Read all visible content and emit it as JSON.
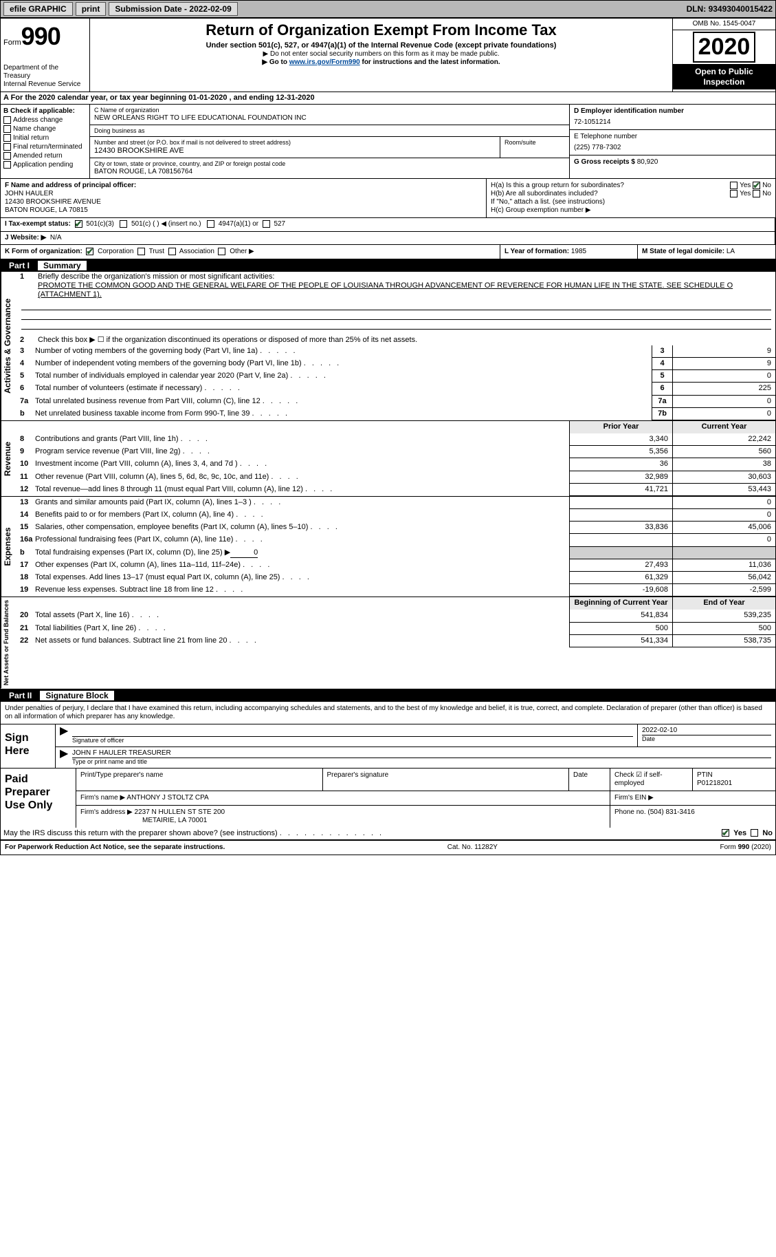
{
  "topbar": {
    "efile": "efile GRAPHIC",
    "print": "print",
    "subdate_label": "Submission Date - ",
    "subdate": "2022-02-09",
    "dln_label": "DLN: ",
    "dln": "93493040015422"
  },
  "header": {
    "form_word": "Form",
    "form_num": "990",
    "dept": "Department of the Treasury",
    "irs": "Internal Revenue Service",
    "title": "Return of Organization Exempt From Income Tax",
    "sub": "Under section 501(c), 527, or 4947(a)(1) of the Internal Revenue Code (except private foundations)",
    "note1": "▶ Do not enter social security numbers on this form as it may be made public.",
    "note2_pre": "▶ Go to ",
    "note2_link": "www.irs.gov/Form990",
    "note2_post": " for instructions and the latest information.",
    "omb": "OMB No. 1545-0047",
    "year": "2020",
    "open": "Open to Public Inspection"
  },
  "period": "A For the 2020 calendar year, or tax year beginning 01-01-2020   , and ending 12-31-2020",
  "B": {
    "label": "B Check if applicable:",
    "addr": "Address change",
    "name": "Name change",
    "init": "Initial return",
    "term": "Final return/terminated",
    "amend": "Amended return",
    "app": "Application pending"
  },
  "C": {
    "name_lbl": "C Name of organization",
    "name": "NEW ORLEANS RIGHT TO LIFE EDUCATIONAL FOUNDATION INC",
    "dba_lbl": "Doing business as",
    "dba": "",
    "addr_lbl": "Number and street (or P.O. box if mail is not delivered to street address)",
    "room_lbl": "Room/suite",
    "addr": "12430 BROOKSHIRE AVE",
    "city_lbl": "City or town, state or province, country, and ZIP or foreign postal code",
    "city": "BATON ROUGE, LA   708156764"
  },
  "D": {
    "lbl": "D Employer identification number",
    "val": "72-1051214"
  },
  "E": {
    "lbl": "E Telephone number",
    "val": "(225) 778-7302"
  },
  "G": {
    "lbl": "G Gross receipts $ ",
    "val": "80,920"
  },
  "F": {
    "lbl": "F Name and address of principal officer:",
    "name": "JOHN HAULER",
    "addr1": "12430 BROOKSHIRE AVENUE",
    "addr2": "BATON ROUGE, LA   70815"
  },
  "H": {
    "a": "H(a)  Is this a group return for subordinates?",
    "b": "H(b)  Are all subordinates included?",
    "bnote": "If \"No,\" attach a list. (see instructions)",
    "c": "H(c)  Group exemption number ▶",
    "yes": "Yes",
    "no": "No"
  },
  "I": {
    "lbl": "I   Tax-exempt status:",
    "opt1": "501(c)(3)",
    "opt2": "501(c) (  ) ◀ (insert no.)",
    "opt3": "4947(a)(1) or",
    "opt4": "527"
  },
  "J": {
    "lbl": "J   Website: ▶",
    "val": "N/A"
  },
  "K": {
    "lbl": "K Form of organization:",
    "corp": "Corporation",
    "trust": "Trust",
    "assoc": "Association",
    "other": "Other ▶"
  },
  "L": {
    "lbl": "L Year of formation: ",
    "val": "1985"
  },
  "M": {
    "lbl": "M State of legal domicile: ",
    "val": "LA"
  },
  "part1": {
    "no": "Part I",
    "title": "Summary"
  },
  "vtabs": {
    "ag": "Activities & Governance",
    "rev": "Revenue",
    "exp": "Expenses",
    "na": "Net Assets or Fund Balances"
  },
  "s1": {
    "n": "1",
    "txt": "Briefly describe the organization's mission or most significant activities:",
    "mission": "PROMOTE THE COMMON GOOD AND THE GENERAL WELFARE OF THE PEOPLE OF LOUISIANA THROUGH ADVANCEMENT OF REVERENCE FOR HUMAN LIFE IN THE STATE. SEE SCHEDULE O (ATTACHMENT 1)."
  },
  "s2": {
    "n": "2",
    "txt": "Check this box ▶ ☐  if the organization discontinued its operations or disposed of more than 25% of its net assets."
  },
  "lines_ag": [
    {
      "n": "3",
      "txt": "Number of voting members of the governing body (Part VI, line 1a)",
      "box": "3",
      "val": "9"
    },
    {
      "n": "4",
      "txt": "Number of independent voting members of the governing body (Part VI, line 1b)",
      "box": "4",
      "val": "9"
    },
    {
      "n": "5",
      "txt": "Total number of individuals employed in calendar year 2020 (Part V, line 2a)",
      "box": "5",
      "val": "0"
    },
    {
      "n": "6",
      "txt": "Total number of volunteers (estimate if necessary)",
      "box": "6",
      "val": "225"
    },
    {
      "n": "7a",
      "txt": "Total unrelated business revenue from Part VIII, column (C), line 12",
      "box": "7a",
      "val": "0"
    },
    {
      "n": "b",
      "txt": "Net unrelated business taxable income from Form 990-T, line 39",
      "box": "7b",
      "val": "0"
    }
  ],
  "col_prior": "Prior Year",
  "col_curr": "Current Year",
  "lines_rev": [
    {
      "n": "8",
      "txt": "Contributions and grants (Part VIII, line 1h)",
      "pv": "3,340",
      "cv": "22,242"
    },
    {
      "n": "9",
      "txt": "Program service revenue (Part VIII, line 2g)",
      "pv": "5,356",
      "cv": "560"
    },
    {
      "n": "10",
      "txt": "Investment income (Part VIII, column (A), lines 3, 4, and 7d )",
      "pv": "36",
      "cv": "38"
    },
    {
      "n": "11",
      "txt": "Other revenue (Part VIII, column (A), lines 5, 6d, 8c, 9c, 10c, and 11e)",
      "pv": "32,989",
      "cv": "30,603"
    },
    {
      "n": "12",
      "txt": "Total revenue—add lines 8 through 11 (must equal Part VIII, column (A), line 12)",
      "pv": "41,721",
      "cv": "53,443"
    }
  ],
  "lines_exp": [
    {
      "n": "13",
      "txt": "Grants and similar amounts paid (Part IX, column (A), lines 1–3 )",
      "pv": "",
      "cv": "0"
    },
    {
      "n": "14",
      "txt": "Benefits paid to or for members (Part IX, column (A), line 4)",
      "pv": "",
      "cv": "0"
    },
    {
      "n": "15",
      "txt": "Salaries, other compensation, employee benefits (Part IX, column (A), lines 5–10)",
      "pv": "33,836",
      "cv": "45,006"
    },
    {
      "n": "16a",
      "txt": "Professional fundraising fees (Part IX, column (A), line 11e)",
      "pv": "",
      "cv": "0"
    }
  ],
  "line16b": {
    "n": "b",
    "txt": "Total fundraising expenses (Part IX, column (D), line 25) ▶",
    "val": "0"
  },
  "lines_exp2": [
    {
      "n": "17",
      "txt": "Other expenses (Part IX, column (A), lines 11a–11d, 11f–24e)",
      "pv": "27,493",
      "cv": "11,036"
    },
    {
      "n": "18",
      "txt": "Total expenses. Add lines 13–17 (must equal Part IX, column (A), line 25)",
      "pv": "61,329",
      "cv": "56,042"
    },
    {
      "n": "19",
      "txt": "Revenue less expenses. Subtract line 18 from line 12",
      "pv": "-19,608",
      "cv": "-2,599"
    }
  ],
  "col_beg": "Beginning of Current Year",
  "col_end": "End of Year",
  "lines_na": [
    {
      "n": "20",
      "txt": "Total assets (Part X, line 16)",
      "pv": "541,834",
      "cv": "539,235"
    },
    {
      "n": "21",
      "txt": "Total liabilities (Part X, line 26)",
      "pv": "500",
      "cv": "500"
    },
    {
      "n": "22",
      "txt": "Net assets or fund balances. Subtract line 21 from line 20",
      "pv": "541,334",
      "cv": "538,735"
    }
  ],
  "part2": {
    "no": "Part II",
    "title": "Signature Block"
  },
  "perjury": "Under penalties of perjury, I declare that I have examined this return, including accompanying schedules and statements, and to the best of my knowledge and belief, it is true, correct, and complete. Declaration of preparer (other than officer) is based on all information of which preparer has any knowledge.",
  "sign": {
    "here": "Sign Here",
    "sig_lbl": "Signature of officer",
    "date_lbl": "Date",
    "date": "2022-02-10",
    "name": "JOHN F HAULER  TREASURER",
    "name_lbl": "Type or print name and title"
  },
  "paid": {
    "title": "Paid Preparer Use Only",
    "pt_name_lbl": "Print/Type preparer's name",
    "pt_sig_lbl": "Preparer's signature",
    "pt_date_lbl": "Date",
    "pt_check_lbl": "Check ☑ if self-employed",
    "ptin_lbl": "PTIN",
    "ptin": "P01218201",
    "firm_name_lbl": "Firm's name    ▶",
    "firm_name": "ANTHONY J STOLTZ CPA",
    "firm_ein_lbl": "Firm's EIN ▶",
    "firm_addr_lbl": "Firm's address ▶",
    "firm_addr1": "2237 N HULLEN ST STE 200",
    "firm_addr2": "METAIRIE, LA   70001",
    "phone_lbl": "Phone no. ",
    "phone": "(504) 831-3416"
  },
  "discuss": "May the IRS discuss this return with the preparer shown above? (see instructions)",
  "footer": {
    "pra": "For Paperwork Reduction Act Notice, see the separate instructions.",
    "cat": "Cat. No. 11282Y",
    "form": "Form 990 (2020)"
  }
}
